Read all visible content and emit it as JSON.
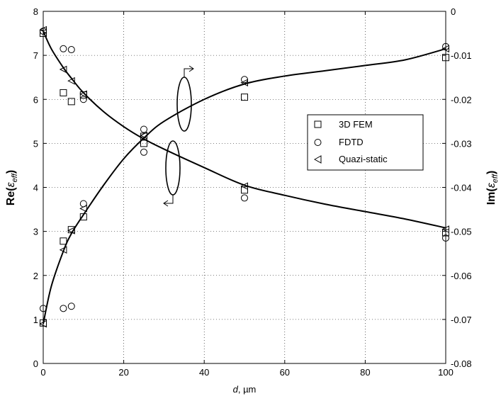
{
  "chart_data": {
    "type": "scatter",
    "x_axis": {
      "label_prefix": "d",
      "label_suffix": ", µm",
      "range": [
        0,
        100
      ],
      "ticks": [
        "0",
        "20",
        "40",
        "60",
        "80",
        "100"
      ]
    },
    "y_left": {
      "label_main": "Re(",
      "label_sym": "ε",
      "label_sub": "eff",
      "label_close": ")",
      "range": [
        0,
        8
      ],
      "ticks": [
        "0",
        "1",
        "2",
        "3",
        "4",
        "5",
        "6",
        "7",
        "8"
      ]
    },
    "y_right": {
      "label_main": "Im(",
      "label_sym": "ε",
      "label_sub": "eff",
      "label_close": ")",
      "range": [
        -0.08,
        0
      ],
      "ticks": [
        "-0.08",
        "-0.07",
        "-0.06",
        "-0.05",
        "-0.04",
        "-0.03",
        "-0.02",
        "-0.01",
        "0"
      ]
    },
    "grid": true,
    "legend": {
      "placement": "right-center",
      "entries": [
        {
          "label": "3D FEM",
          "marker": "square"
        },
        {
          "label": "FDTD",
          "marker": "circle"
        },
        {
          "label": "Quazi-static",
          "marker": "triangle-left"
        }
      ]
    },
    "series": [
      {
        "axis": "left",
        "marker": "square",
        "x": [
          0,
          5,
          7,
          10,
          25,
          50,
          100
        ],
        "y": [
          7.5,
          6.15,
          5.95,
          6.1,
          5.0,
          6.05,
          6.95
        ]
      },
      {
        "axis": "left",
        "marker": "circle",
        "x": [
          0,
          5,
          7,
          10,
          25,
          50,
          100
        ],
        "y": [
          7.55,
          7.15,
          7.13,
          6.0,
          4.8,
          6.45,
          7.2
        ]
      },
      {
        "axis": "left",
        "marker": "triangle-left",
        "x": [
          0,
          5,
          7,
          10,
          25,
          50,
          100
        ],
        "y": [
          7.58,
          6.68,
          6.42,
          6.12,
          5.18,
          6.38,
          7.15
        ]
      },
      {
        "axis": "right",
        "marker": "square",
        "x": [
          0,
          5,
          7,
          10,
          25,
          50,
          100
        ],
        "y": [
          -0.0708,
          -0.0522,
          -0.0496,
          -0.0467,
          -0.0284,
          -0.0406,
          -0.0503
        ]
      },
      {
        "axis": "right",
        "marker": "circle",
        "x": [
          0,
          5,
          7,
          10,
          25,
          50,
          100
        ],
        "y": [
          -0.0675,
          -0.0675,
          -0.067,
          -0.0437,
          -0.0268,
          -0.0424,
          -0.0515
        ]
      },
      {
        "axis": "right",
        "marker": "triangle-left",
        "x": [
          0,
          5,
          7,
          10,
          25,
          50,
          100
        ],
        "y": [
          -0.071,
          -0.0542,
          -0.0498,
          -0.0448,
          -0.0282,
          -0.0397,
          -0.0495
        ]
      }
    ],
    "fit_curves": [
      {
        "axis": "left",
        "x": [
          0,
          2,
          5,
          7,
          10,
          15,
          20,
          25,
          30,
          40,
          50,
          60,
          70,
          80,
          90,
          100
        ],
        "y": [
          7.55,
          7.15,
          6.72,
          6.48,
          6.15,
          5.72,
          5.38,
          5.1,
          4.87,
          4.45,
          4.05,
          3.82,
          3.62,
          3.45,
          3.28,
          3.08
        ]
      },
      {
        "axis": "right",
        "x": [
          0,
          2,
          5,
          7,
          10,
          15,
          20,
          25,
          30,
          40,
          50,
          60,
          70,
          80,
          90,
          100
        ],
        "y": [
          -0.071,
          -0.0625,
          -0.0545,
          -0.0505,
          -0.0462,
          -0.0395,
          -0.0335,
          -0.0288,
          -0.025,
          -0.02,
          -0.0165,
          -0.0147,
          -0.0135,
          -0.0123,
          -0.011,
          -0.0085
        ]
      }
    ],
    "annotations": [
      {
        "target": "right",
        "note": "ellipse with arrow pointing right"
      },
      {
        "target": "left",
        "note": "ellipse with arrow pointing left"
      }
    ]
  }
}
